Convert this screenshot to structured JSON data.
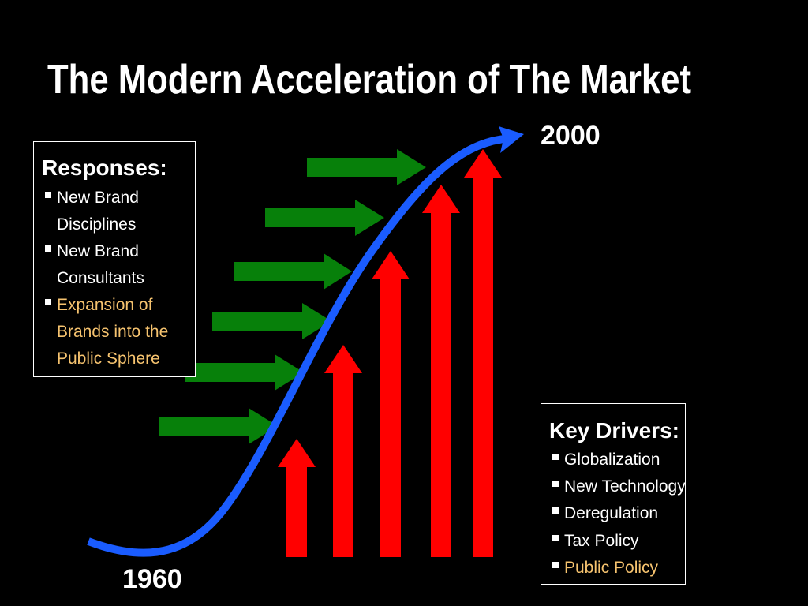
{
  "title": "The Modern Acceleration of The Market",
  "start_label": "1960",
  "end_label": "2000",
  "responses": {
    "heading": "Responses:",
    "items": [
      [
        "New Brand",
        "Disciplines"
      ],
      [
        "New Brand",
        "Consultants"
      ],
      [
        "Expansion of",
        "Brands into the",
        "Public Sphere"
      ]
    ]
  },
  "key_drivers": {
    "heading": "Key Drivers:",
    "items": [
      "Globalization",
      "New Technology",
      "Deregulation",
      "Tax Policy",
      "Public Policy"
    ]
  }
}
